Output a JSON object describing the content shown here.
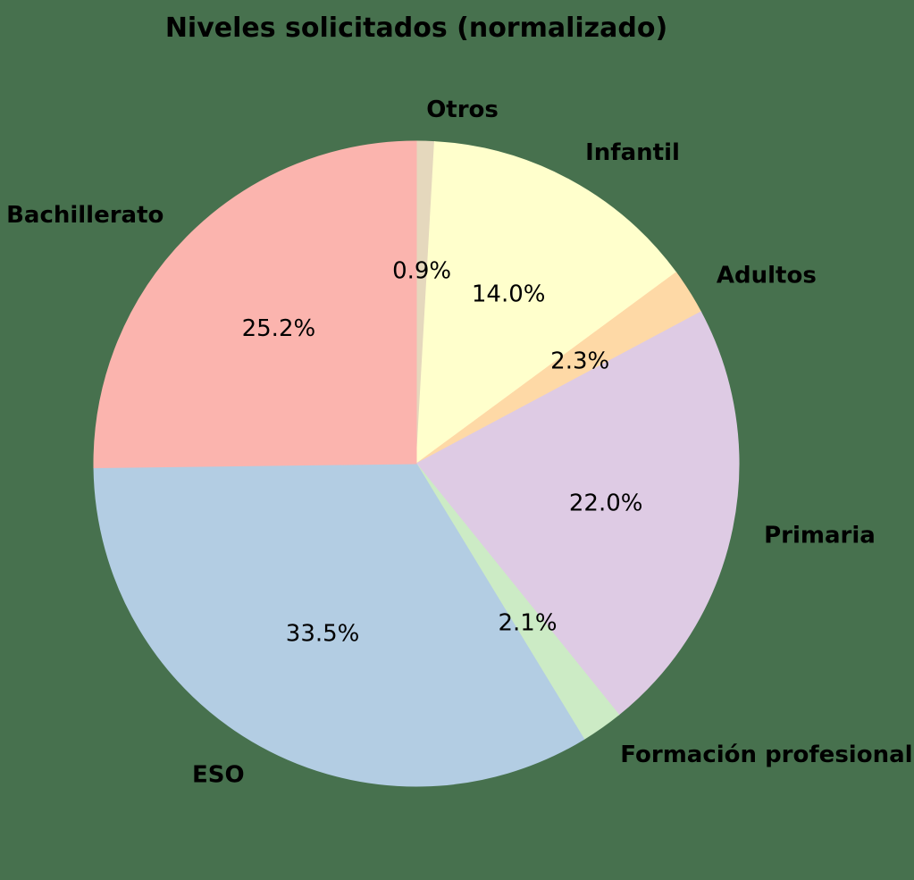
{
  "chart_data": {
    "type": "pie",
    "title": "Niveles solicitados (normalizado)",
    "background_color": "#47714E",
    "text_color": "#000000",
    "start_angle_deg": 90,
    "direction": "clockwise",
    "label_distance": 1.1,
    "pct_distance": 0.6,
    "slices": [
      {
        "label": "Otros",
        "value": 0.9,
        "pct_label": "0.9%",
        "color": "#E5D8BD"
      },
      {
        "label": "Infantil",
        "value": 14.0,
        "pct_label": "14.0%",
        "color": "#FFFFCC"
      },
      {
        "label": "Adultos",
        "value": 2.3,
        "pct_label": "2.3%",
        "color": "#FED9A6"
      },
      {
        "label": "Primaria",
        "value": 22.0,
        "pct_label": "22.0%",
        "color": "#DECBE4"
      },
      {
        "label": "Formación profesional",
        "value": 2.1,
        "pct_label": "2.1%",
        "color": "#CCEBC5"
      },
      {
        "label": "ESO",
        "value": 33.5,
        "pct_label": "33.5%",
        "color": "#B3CDE3"
      },
      {
        "label": "Bachillerato",
        "value": 25.2,
        "pct_label": "25.2%",
        "color": "#FBB4AE"
      }
    ]
  }
}
